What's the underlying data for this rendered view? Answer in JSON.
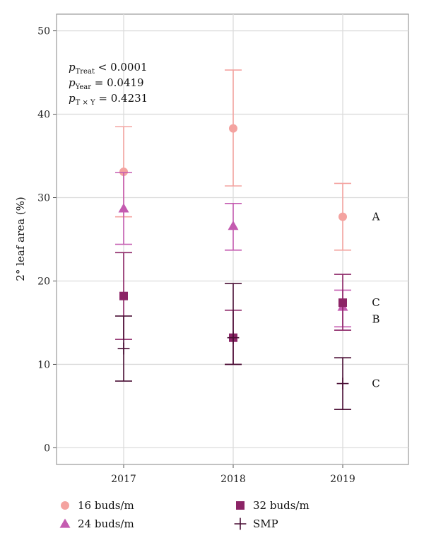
{
  "chart_data": {
    "type": "scatter",
    "ylabel": "2° leaf area (%)",
    "xlabel": "",
    "ylim": [
      -2,
      52
    ],
    "yticks": [
      0,
      10,
      20,
      30,
      40,
      50
    ],
    "categories": [
      "2017",
      "2018",
      "2019"
    ],
    "grid": true,
    "legend_position": "bottom",
    "stats": [
      {
        "p": "p",
        "sub": "Treat",
        "text": " < 0.0001"
      },
      {
        "p": "p",
        "sub": "Year",
        "text": " = 0.0419"
      },
      {
        "p": "p",
        "sub": "T × Y",
        "text": " = 0.4231"
      }
    ],
    "series": [
      {
        "name": "16 buds/m",
        "marker": "circle",
        "color": "#f4a3a0",
        "values": [
          33.1,
          38.3,
          27.7
        ],
        "lower": [
          27.7,
          31.4,
          23.7
        ],
        "upper": [
          38.5,
          45.3,
          31.7
        ]
      },
      {
        "name": "24 buds/m",
        "marker": "triangle",
        "color": "#c45bb0",
        "values": [
          28.7,
          26.6,
          16.9
        ],
        "lower": [
          24.4,
          23.7,
          14.5
        ],
        "upper": [
          33.0,
          29.3,
          18.9
        ]
      },
      {
        "name": "32 buds/m",
        "marker": "square",
        "color": "#8c2466",
        "values": [
          18.2,
          13.2,
          17.4
        ],
        "lower": [
          13.0,
          10.0,
          14.1
        ],
        "upper": [
          23.4,
          16.5,
          20.8
        ]
      },
      {
        "name": "SMP",
        "marker": "cross",
        "color": "#4a0f35",
        "values": [
          11.9,
          13.2,
          7.7
        ],
        "lower": [
          8.0,
          10.0,
          4.6
        ],
        "upper": [
          15.8,
          19.7,
          10.8
        ]
      }
    ],
    "significance_labels": [
      {
        "text": "A",
        "y": 27.7
      },
      {
        "text": "C",
        "y": 17.4
      },
      {
        "text": "B",
        "y": 15.4
      },
      {
        "text": "C",
        "y": 7.7
      }
    ]
  }
}
